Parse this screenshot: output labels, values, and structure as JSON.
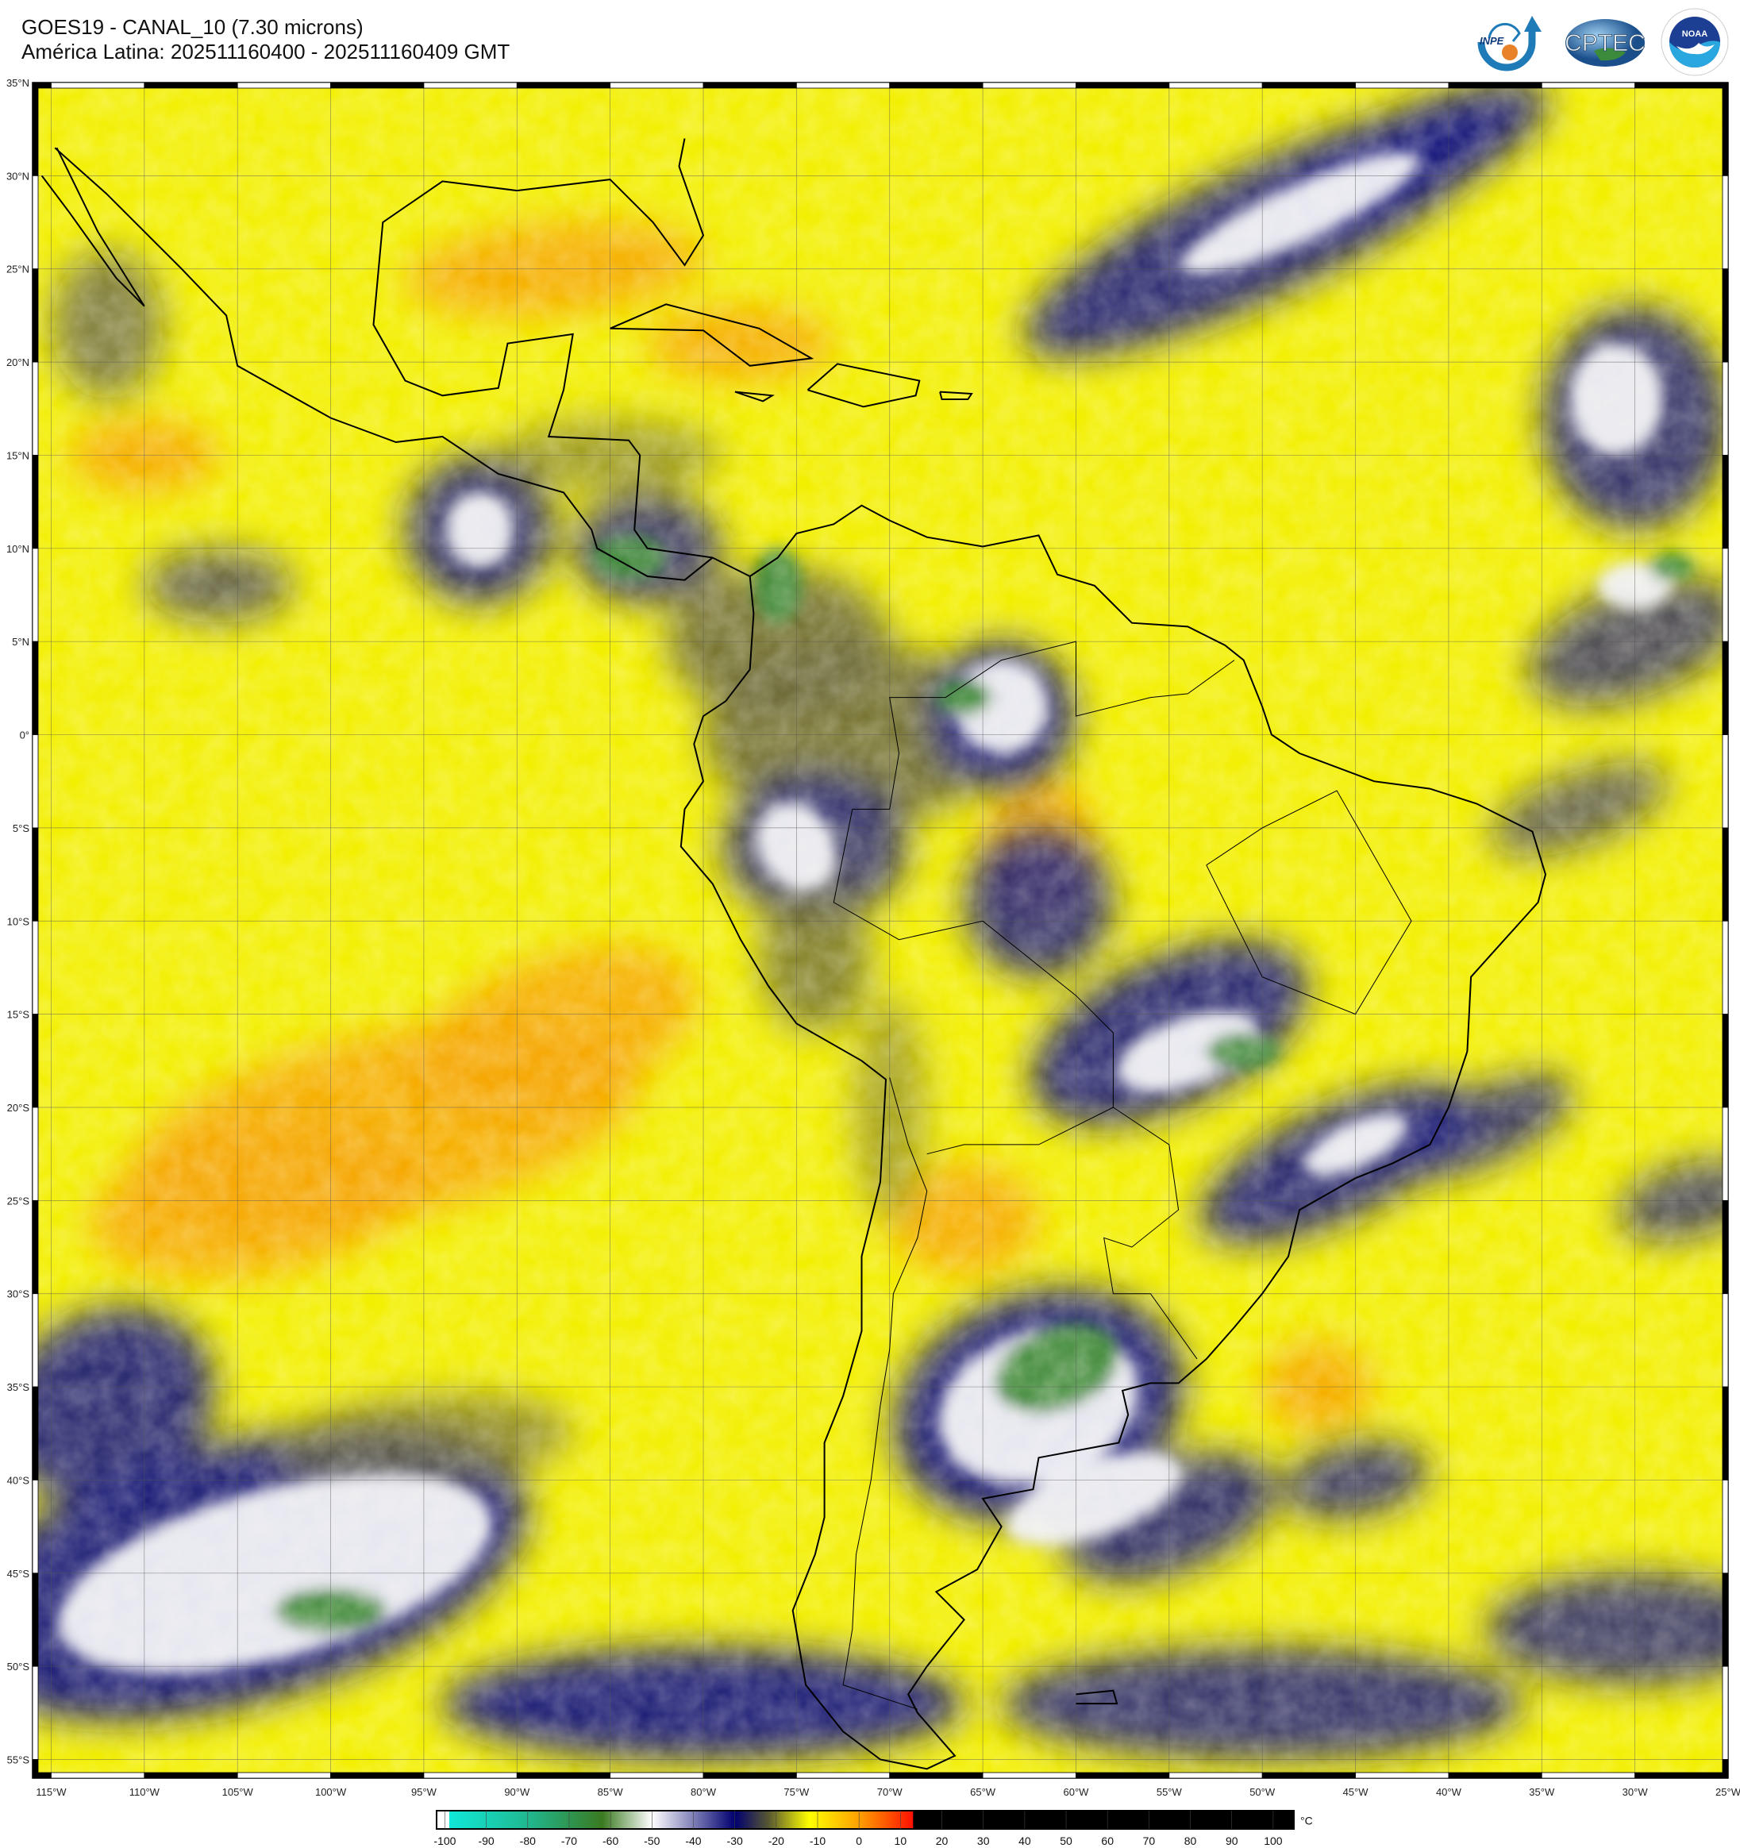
{
  "header": {
    "title": "GOES19 - CANAL_10 (7.30 microns)",
    "subtitle": "América Latina: 202511160400 - 202511160409 GMT"
  },
  "logos": [
    {
      "name": "INPE",
      "text": "INPE"
    },
    {
      "name": "CPTEC",
      "text": "CPTEC"
    },
    {
      "name": "NOAA",
      "text": "NOAA",
      "ring_text": "NATIONAL OCEANIC AND ATMOSPHERIC ADMINISTRATION · U.S. DEPARTMENT OF COMMERCE"
    }
  ],
  "map": {
    "extent": {
      "lon_min": -116,
      "lon_max": -25,
      "lat_min": -56,
      "lat_max": 35
    },
    "grid": true,
    "lon_labels": [
      "115°W",
      "110°W",
      "105°W",
      "100°W",
      "95°W",
      "90°W",
      "85°W",
      "80°W",
      "75°W",
      "70°W",
      "65°W",
      "60°W",
      "55°W",
      "50°W",
      "45°W",
      "40°W",
      "35°W",
      "30°W",
      "25°W"
    ],
    "lat_labels": [
      "35°N",
      "30°N",
      "25°N",
      "20°N",
      "15°N",
      "10°N",
      "5°N",
      "0°",
      "5°S",
      "10°S",
      "15°S",
      "20°S",
      "25°S",
      "30°S",
      "35°S",
      "40°S",
      "45°S",
      "50°S",
      "55°S"
    ],
    "colors": {
      "warm_yellow": "#f3ef00",
      "orange": "#f7a600",
      "moist_blue": "#15157e",
      "cold_white": "#f2f2f8",
      "very_cold_green": "#3f8a3a",
      "dry_olive": "#6d6a3a"
    }
  },
  "colorbar": {
    "unit": "°C",
    "ticks": [
      "-100",
      "-90",
      "-80",
      "-70",
      "-60",
      "-50",
      "-40",
      "-30",
      "-20",
      "-10",
      "0",
      "10",
      "20",
      "30",
      "40",
      "50",
      "60",
      "70",
      "80",
      "90",
      "100"
    ],
    "range": [
      -102,
      105
    ],
    "stops": [
      {
        "t": -102,
        "color": "#ffffff"
      },
      {
        "t": -99,
        "color": "#ffffff"
      },
      {
        "t": -98.9,
        "color": "#10e8d8"
      },
      {
        "t": -80,
        "color": "#20b890"
      },
      {
        "t": -62,
        "color": "#3a7a20"
      },
      {
        "t": -50,
        "color": "#ffffff"
      },
      {
        "t": -30,
        "color": "#000070"
      },
      {
        "t": -22,
        "color": "#555533"
      },
      {
        "t": -12,
        "color": "#ffff00"
      },
      {
        "t": 0,
        "color": "#ffa000"
      },
      {
        "t": 13,
        "color": "#ff1000"
      },
      {
        "t": 13.1,
        "color": "#000000"
      },
      {
        "t": 105,
        "color": "#000000"
      }
    ]
  }
}
